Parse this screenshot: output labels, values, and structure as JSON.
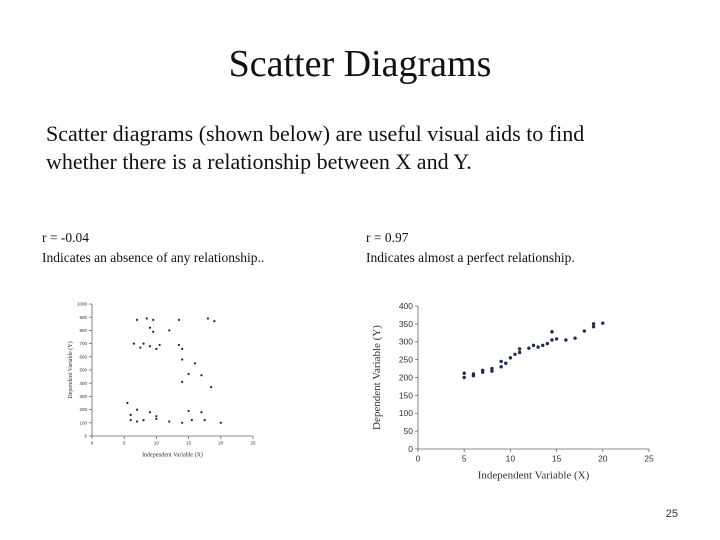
{
  "slide": {
    "title": "Scatter Diagrams",
    "intro_line1": "Scatter diagrams (shown below) are useful visual aids to find",
    "intro_line2": "whether there is a relationship between X and Y.",
    "page_number": "25"
  },
  "captions": {
    "left_r": "r = -0.04",
    "left_desc": "Indicates an absence of any relationship..",
    "right_r": "r = 0.97",
    "right_desc": "Indicates almost a perfect relationship."
  },
  "chart_data": [
    {
      "type": "scatter",
      "title": "",
      "xlabel": "Independent Variable (X)",
      "ylabel": "Dependent Variable (Y)",
      "xlim": [
        0,
        25
      ],
      "ylim": [
        0,
        1000
      ],
      "xticks": [
        "0",
        "5",
        "10",
        "15",
        "20",
        "25"
      ],
      "yticks": [
        "0",
        "100",
        "200",
        "300",
        "400",
        "500",
        "600",
        "700",
        "800",
        "900",
        "1000"
      ],
      "grid": false,
      "color": "#222222",
      "points": [
        [
          7,
          880
        ],
        [
          8.5,
          890
        ],
        [
          9.5,
          880
        ],
        [
          13.5,
          880
        ],
        [
          18,
          890
        ],
        [
          19,
          870
        ],
        [
          9,
          820
        ],
        [
          12,
          800
        ],
        [
          9.5,
          790
        ],
        [
          6.5,
          700
        ],
        [
          7.5,
          670
        ],
        [
          8,
          700
        ],
        [
          9,
          680
        ],
        [
          10,
          660
        ],
        [
          10.5,
          690
        ],
        [
          13.5,
          690
        ],
        [
          14,
          660
        ],
        [
          14,
          580
        ],
        [
          16,
          550
        ],
        [
          15,
          470
        ],
        [
          14,
          410
        ],
        [
          17,
          460
        ],
        [
          18.5,
          370
        ],
        [
          5.5,
          250
        ],
        [
          7,
          200
        ],
        [
          6,
          160
        ],
        [
          9,
          180
        ],
        [
          10,
          150
        ],
        [
          15,
          190
        ],
        [
          17,
          180
        ],
        [
          6,
          120
        ],
        [
          7,
          110
        ],
        [
          8,
          120
        ],
        [
          10,
          130
        ],
        [
          12,
          110
        ],
        [
          14,
          100
        ],
        [
          15.5,
          120
        ],
        [
          17.5,
          120
        ],
        [
          20,
          100
        ]
      ]
    },
    {
      "type": "scatter",
      "title": "",
      "xlabel": "Independent Variable (X)",
      "ylabel": "Dependent Variable (Y)",
      "xlim": [
        0,
        25
      ],
      "ylim": [
        0,
        400
      ],
      "xticks": [
        "0",
        "5",
        "10",
        "15",
        "20",
        "25"
      ],
      "yticks": [
        "0",
        "50",
        "100",
        "150",
        "200",
        "250",
        "300",
        "350",
        "400"
      ],
      "grid": false,
      "color": "#1f2a55",
      "points": [
        [
          5,
          200
        ],
        [
          5,
          212
        ],
        [
          6,
          205
        ],
        [
          6,
          210
        ],
        [
          7,
          215
        ],
        [
          7,
          220
        ],
        [
          8,
          218
        ],
        [
          8,
          225
        ],
        [
          9,
          230
        ],
        [
          9,
          245
        ],
        [
          9.5,
          240
        ],
        [
          10,
          255
        ],
        [
          10.5,
          265
        ],
        [
          11,
          270
        ],
        [
          11,
          280
        ],
        [
          12,
          282
        ],
        [
          12.5,
          290
        ],
        [
          13,
          285
        ],
        [
          13.5,
          290
        ],
        [
          14,
          295
        ],
        [
          14.5,
          305
        ],
        [
          14.5,
          328
        ],
        [
          15,
          308
        ],
        [
          16,
          305
        ],
        [
          17,
          310
        ],
        [
          18,
          330
        ],
        [
          19,
          342
        ],
        [
          19,
          350
        ],
        [
          20,
          352
        ]
      ]
    }
  ]
}
